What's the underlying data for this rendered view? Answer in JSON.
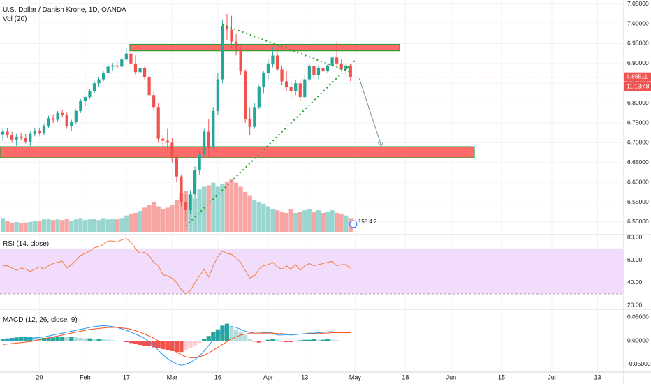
{
  "header": {
    "title": "U.S. Dollar / Danish Krone, 1D, OANDA",
    "volume_label": "Vol (20)"
  },
  "rsi_label": "RSI (14, close)",
  "macd_label": "MACD (12, 26, close, 9)",
  "price_tag": {
    "value": "6.86511",
    "countdown": "11:13:48"
  },
  "volume_badge": "158.4.2",
  "colors": {
    "up": "#26a69a",
    "down": "#ef5350",
    "zone_fill": "#ff6b6b",
    "zone_border": "#2ca02c",
    "trend": "#2ca02c",
    "rsi_line": "#f57c3b",
    "rsi_band": "#f1dcfb",
    "macd_line": "#2196f3",
    "signal_line": "#f4511e",
    "price_line": "#ef5350"
  },
  "chart_data": {
    "type": "candlestick",
    "title": "U.S. Dollar / Danish Krone, 1D, OANDA",
    "price_axis": {
      "ylim": [
        6.47,
        7.06
      ],
      "ticks": [
        "7.05000",
        "7.00000",
        "6.95000",
        "6.90000",
        "6.85000",
        "6.80000",
        "6.75000",
        "6.70000",
        "6.65000",
        "6.60000",
        "6.55000",
        "6.50000"
      ]
    },
    "time_axis": {
      "labels": [
        "20",
        "Feb",
        "17",
        "Mar",
        "16",
        "Apr",
        "13",
        "May",
        "18",
        "Jun",
        "15",
        "Jul",
        "13"
      ]
    },
    "candles": [
      {
        "o": 6.721,
        "h": 6.735,
        "l": 6.705,
        "c": 6.728
      },
      {
        "o": 6.728,
        "h": 6.738,
        "l": 6.712,
        "c": 6.72
      },
      {
        "o": 6.72,
        "h": 6.728,
        "l": 6.7,
        "c": 6.708
      },
      {
        "o": 6.708,
        "h": 6.722,
        "l": 6.692,
        "c": 6.715
      },
      {
        "o": 6.715,
        "h": 6.725,
        "l": 6.705,
        "c": 6.712
      },
      {
        "o": 6.712,
        "h": 6.722,
        "l": 6.698,
        "c": 6.703
      },
      {
        "o": 6.703,
        "h": 6.728,
        "l": 6.692,
        "c": 6.722
      },
      {
        "o": 6.722,
        "h": 6.736,
        "l": 6.716,
        "c": 6.73
      },
      {
        "o": 6.73,
        "h": 6.738,
        "l": 6.718,
        "c": 6.725
      },
      {
        "o": 6.725,
        "h": 6.748,
        "l": 6.72,
        "c": 6.742
      },
      {
        "o": 6.742,
        "h": 6.768,
        "l": 6.738,
        "c": 6.762
      },
      {
        "o": 6.762,
        "h": 6.772,
        "l": 6.75,
        "c": 6.758
      },
      {
        "o": 6.758,
        "h": 6.78,
        "l": 6.752,
        "c": 6.775
      },
      {
        "o": 6.775,
        "h": 6.784,
        "l": 6.766,
        "c": 6.77
      },
      {
        "o": 6.77,
        "h": 6.776,
        "l": 6.735,
        "c": 6.742
      },
      {
        "o": 6.742,
        "h": 6.758,
        "l": 6.73,
        "c": 6.752
      },
      {
        "o": 6.752,
        "h": 6.785,
        "l": 6.748,
        "c": 6.78
      },
      {
        "o": 6.78,
        "h": 6.81,
        "l": 6.775,
        "c": 6.805
      },
      {
        "o": 6.805,
        "h": 6.82,
        "l": 6.792,
        "c": 6.815
      },
      {
        "o": 6.815,
        "h": 6.835,
        "l": 6.81,
        "c": 6.83
      },
      {
        "o": 6.83,
        "h": 6.855,
        "l": 6.825,
        "c": 6.85
      },
      {
        "o": 6.85,
        "h": 6.865,
        "l": 6.84,
        "c": 6.86
      },
      {
        "o": 6.86,
        "h": 6.88,
        "l": 6.855,
        "c": 6.875
      },
      {
        "o": 6.875,
        "h": 6.898,
        "l": 6.87,
        "c": 6.892
      },
      {
        "o": 6.892,
        "h": 6.902,
        "l": 6.882,
        "c": 6.895
      },
      {
        "o": 6.895,
        "h": 6.905,
        "l": 6.886,
        "c": 6.892
      },
      {
        "o": 6.892,
        "h": 6.915,
        "l": 6.888,
        "c": 6.91
      },
      {
        "o": 6.91,
        "h": 6.938,
        "l": 6.905,
        "c": 6.925
      },
      {
        "o": 6.925,
        "h": 6.935,
        "l": 6.895,
        "c": 6.9
      },
      {
        "o": 6.9,
        "h": 6.92,
        "l": 6.872,
        "c": 6.878
      },
      {
        "o": 6.878,
        "h": 6.895,
        "l": 6.868,
        "c": 6.888
      },
      {
        "o": 6.888,
        "h": 6.892,
        "l": 6.86,
        "c": 6.865
      },
      {
        "o": 6.865,
        "h": 6.87,
        "l": 6.815,
        "c": 6.82
      },
      {
        "o": 6.82,
        "h": 6.83,
        "l": 6.78,
        "c": 6.79
      },
      {
        "o": 6.79,
        "h": 6.8,
        "l": 6.7,
        "c": 6.71
      },
      {
        "o": 6.71,
        "h": 6.72,
        "l": 6.69,
        "c": 6.705
      },
      {
        "o": 6.705,
        "h": 6.735,
        "l": 6.68,
        "c": 6.7
      },
      {
        "o": 6.7,
        "h": 6.712,
        "l": 6.65,
        "c": 6.66
      },
      {
        "o": 6.66,
        "h": 6.67,
        "l": 6.6,
        "c": 6.615
      },
      {
        "o": 6.615,
        "h": 6.62,
        "l": 6.54,
        "c": 6.55
      },
      {
        "o": 6.55,
        "h": 6.57,
        "l": 6.5,
        "c": 6.53
      },
      {
        "o": 6.53,
        "h": 6.58,
        "l": 6.52,
        "c": 6.57
      },
      {
        "o": 6.57,
        "h": 6.64,
        "l": 6.56,
        "c": 6.63
      },
      {
        "o": 6.63,
        "h": 6.68,
        "l": 6.62,
        "c": 6.67
      },
      {
        "o": 6.67,
        "h": 6.735,
        "l": 6.665,
        "c": 6.728
      },
      {
        "o": 6.728,
        "h": 6.76,
        "l": 6.66,
        "c": 6.69
      },
      {
        "o": 6.69,
        "h": 6.79,
        "l": 6.685,
        "c": 6.78
      },
      {
        "o": 6.78,
        "h": 6.875,
        "l": 6.77,
        "c": 6.86
      },
      {
        "o": 6.86,
        "h": 7.01,
        "l": 6.85,
        "c": 6.995
      },
      {
        "o": 6.995,
        "h": 7.025,
        "l": 6.96,
        "c": 6.985
      },
      {
        "o": 6.985,
        "h": 7.02,
        "l": 6.94,
        "c": 6.955
      },
      {
        "o": 6.955,
        "h": 6.975,
        "l": 6.92,
        "c": 6.935
      },
      {
        "o": 6.935,
        "h": 6.945,
        "l": 6.87,
        "c": 6.88
      },
      {
        "o": 6.88,
        "h": 6.885,
        "l": 6.75,
        "c": 6.76
      },
      {
        "o": 6.76,
        "h": 6.79,
        "l": 6.72,
        "c": 6.74
      },
      {
        "o": 6.74,
        "h": 6.8,
        "l": 6.735,
        "c": 6.79
      },
      {
        "o": 6.79,
        "h": 6.845,
        "l": 6.785,
        "c": 6.84
      },
      {
        "o": 6.84,
        "h": 6.88,
        "l": 6.825,
        "c": 6.875
      },
      {
        "o": 6.875,
        "h": 6.91,
        "l": 6.86,
        "c": 6.9
      },
      {
        "o": 6.9,
        "h": 6.94,
        "l": 6.89,
        "c": 6.92
      },
      {
        "o": 6.92,
        "h": 6.935,
        "l": 6.88,
        "c": 6.885
      },
      {
        "o": 6.885,
        "h": 6.895,
        "l": 6.845,
        "c": 6.855
      },
      {
        "o": 6.855,
        "h": 6.88,
        "l": 6.83,
        "c": 6.84
      },
      {
        "o": 6.84,
        "h": 6.855,
        "l": 6.81,
        "c": 6.83
      },
      {
        "o": 6.83,
        "h": 6.858,
        "l": 6.82,
        "c": 6.85
      },
      {
        "o": 6.85,
        "h": 6.86,
        "l": 6.805,
        "c": 6.815
      },
      {
        "o": 6.815,
        "h": 6.87,
        "l": 6.81,
        "c": 6.86
      },
      {
        "o": 6.86,
        "h": 6.898,
        "l": 6.855,
        "c": 6.893
      },
      {
        "o": 6.893,
        "h": 6.9,
        "l": 6.862,
        "c": 6.87
      },
      {
        "o": 6.87,
        "h": 6.895,
        "l": 6.86,
        "c": 6.888
      },
      {
        "o": 6.888,
        "h": 6.9,
        "l": 6.872,
        "c": 6.88
      },
      {
        "o": 6.88,
        "h": 6.9,
        "l": 6.876,
        "c": 6.895
      },
      {
        "o": 6.895,
        "h": 6.925,
        "l": 6.885,
        "c": 6.915
      },
      {
        "o": 6.915,
        "h": 6.955,
        "l": 6.895,
        "c": 6.9
      },
      {
        "o": 6.9,
        "h": 6.91,
        "l": 6.88,
        "c": 6.885
      },
      {
        "o": 6.885,
        "h": 6.9,
        "l": 6.87,
        "c": 6.895
      },
      {
        "o": 6.895,
        "h": 6.9,
        "l": 6.855,
        "c": 6.865
      }
    ],
    "volumes": [
      22,
      18,
      15,
      16,
      14,
      15,
      16,
      18,
      17,
      20,
      21,
      19,
      20,
      19,
      21,
      18,
      20,
      22,
      19,
      20,
      21,
      19,
      22,
      20,
      21,
      20,
      22,
      26,
      28,
      30,
      33,
      38,
      42,
      46,
      40,
      36,
      38,
      42,
      50,
      60,
      64,
      58,
      52,
      66,
      70,
      72,
      76,
      70,
      74,
      78,
      82,
      76,
      70,
      62,
      56,
      50,
      46,
      44,
      40,
      36,
      34,
      32,
      30,
      36,
      30,
      32,
      34,
      36,
      32,
      34,
      30,
      32,
      34,
      30,
      28,
      26,
      22
    ],
    "rsi": {
      "ylim": [
        17,
        82
      ],
      "ticks": [
        "80.00",
        "60.00",
        "40.00",
        "20.00"
      ],
      "band": [
        30,
        70
      ],
      "values": [
        55,
        55,
        53,
        51,
        53,
        52,
        50,
        52,
        54,
        52,
        55,
        57,
        58,
        59,
        53,
        56,
        60,
        64,
        66,
        68,
        71,
        72,
        74,
        77,
        77,
        76,
        78,
        79,
        76,
        70,
        66,
        67,
        64,
        58,
        55,
        47,
        46,
        44,
        40,
        34,
        30,
        33,
        40,
        46,
        52,
        45,
        55,
        63,
        68,
        66,
        65,
        62,
        58,
        51,
        44,
        46,
        52,
        55,
        56,
        58,
        54,
        52,
        55,
        52,
        56,
        51,
        55,
        57,
        55,
        56,
        57,
        58,
        59,
        55,
        56,
        56,
        53
      ]
    },
    "macd": {
      "ylim": [
        -0.065,
        0.065
      ],
      "ticks": [
        "0.05000",
        "0.00000",
        "-0.05000"
      ],
      "macd": [
        0.0,
        0.001,
        0.002,
        0.003,
        0.004,
        0.004,
        0.005,
        0.006,
        0.007,
        0.008,
        0.01,
        0.012,
        0.014,
        0.016,
        0.018,
        0.02,
        0.022,
        0.024,
        0.026,
        0.028,
        0.03,
        0.031,
        0.032,
        0.031,
        0.03,
        0.028,
        0.025,
        0.022,
        0.018,
        0.014,
        0.01,
        0.005,
        -0.002,
        -0.01,
        -0.02,
        -0.03,
        -0.038,
        -0.044,
        -0.049,
        -0.052,
        -0.05,
        -0.046,
        -0.04,
        -0.032,
        -0.022,
        -0.01,
        0.002,
        0.012,
        0.02,
        0.028,
        0.03,
        0.028,
        0.024,
        0.02,
        0.018,
        0.016,
        0.016,
        0.017,
        0.018,
        0.016,
        0.012,
        0.012,
        0.013,
        0.012,
        0.013,
        0.014,
        0.015,
        0.016,
        0.016,
        0.017,
        0.018,
        0.019,
        0.019,
        0.018,
        0.018,
        0.017,
        0.017
      ],
      "signal": [
        -0.008,
        -0.007,
        -0.006,
        -0.005,
        -0.004,
        -0.003,
        -0.002,
        0.0,
        0.002,
        0.004,
        0.006,
        0.008,
        0.01,
        0.012,
        0.014,
        0.016,
        0.018,
        0.02,
        0.022,
        0.024,
        0.025,
        0.026,
        0.027,
        0.028,
        0.028,
        0.028,
        0.027,
        0.026,
        0.024,
        0.021,
        0.018,
        0.014,
        0.01,
        0.005,
        0.0,
        -0.006,
        -0.012,
        -0.018,
        -0.024,
        -0.03,
        -0.034,
        -0.036,
        -0.036,
        -0.034,
        -0.031,
        -0.026,
        -0.02,
        -0.014,
        -0.008,
        -0.002,
        0.004,
        0.008,
        0.012,
        0.014,
        0.016,
        0.016,
        0.016,
        0.016,
        0.016,
        0.016,
        0.015,
        0.015,
        0.014,
        0.014,
        0.014,
        0.014,
        0.014,
        0.015,
        0.015,
        0.015,
        0.016,
        0.016,
        0.017,
        0.017,
        0.017,
        0.017,
        0.017
      ],
      "hist": [
        0.004,
        0.005,
        0.006,
        0.007,
        0.008,
        0.008,
        0.008,
        0.007,
        0.006,
        0.006,
        0.006,
        0.007,
        0.008,
        0.009,
        0.008,
        0.008,
        0.007,
        0.006,
        0.005,
        0.005,
        0.004,
        0.004,
        0.003,
        0.002,
        0.001,
        0.0,
        -0.001,
        -0.003,
        -0.005,
        -0.007,
        -0.009,
        -0.011,
        -0.012,
        -0.014,
        -0.016,
        -0.018,
        -0.02,
        -0.022,
        -0.024,
        -0.024,
        -0.02,
        -0.015,
        -0.01,
        -0.005,
        0.003,
        0.01,
        0.018,
        0.024,
        0.032,
        0.036,
        0.03,
        0.024,
        0.018,
        0.012,
        0.004,
        -0.002,
        -0.004,
        -0.002,
        0.002,
        0.004,
        0.002,
        -0.002,
        -0.003,
        -0.003,
        -0.002,
        0.001,
        0.002,
        0.002,
        0.003,
        0.002,
        0.002,
        0.003,
        0.002,
        0.001,
        0.0,
        0.0,
        -0.001
      ]
    },
    "annotations": {
      "resistance_zone": [
        6.932,
        6.948
      ],
      "support_zone": [
        6.662,
        6.69
      ],
      "last_price": 6.86511
    }
  }
}
